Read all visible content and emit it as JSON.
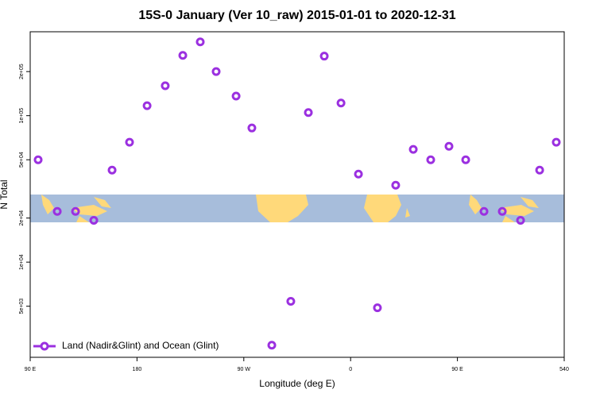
{
  "chart_data": {
    "type": "scatter",
    "title": "15S-0 January (Ver 10_raw)   2015-01-01 to 2020-12-31",
    "x_label": "Longitude (deg E)",
    "y_label": "N Total",
    "log_y": true,
    "legend_position": "bottom-left",
    "xlim": [
      90,
      540
    ],
    "ylim": [
      2240,
      374000
    ],
    "xticks": [
      {
        "value": 90,
        "label": "90 E"
      },
      180,
      {
        "value": 270,
        "label": "90 W"
      },
      {
        "value": 360,
        "label": "0"
      },
      {
        "value": 450,
        "label": "90 E"
      },
      540
    ],
    "yticks": [
      {
        "value": 5000,
        "label": "5e+03"
      },
      {
        "value": 10000,
        "label": "1e+04"
      },
      {
        "value": 20000,
        "label": "2e+04"
      },
      {
        "value": 50000,
        "label": "5e+04"
      },
      {
        "value": 100000,
        "label": "1e+05"
      },
      {
        "value": 200000,
        "label": "2e+05"
      }
    ],
    "series": [
      {
        "name": "Land (Nadir&Glint) and Ocean (Glint)",
        "color": "#9b30e0",
        "x": [
          96.7,
          112.8,
          128.2,
          143.6,
          159,
          173.7,
          188.5,
          203.8,
          218.6,
          233.3,
          246.7,
          263.5,
          276.8,
          293.6,
          309.6,
          324.4,
          337.8,
          351.9,
          366.6,
          382.6,
          398,
          412.8,
          427.5,
          442.9,
          457,
          472.4,
          487.8,
          503.2,
          519.3,
          533.3
        ],
        "values": [
          50000,
          22200,
          22200,
          19300,
          42500,
          65900,
          117000,
          160000,
          258000,
          319000,
          200000,
          136000,
          82400,
          2710,
          5400,
          105000,
          255000,
          122000,
          39900,
          4880,
          33500,
          58900,
          50000,
          61800,
          50000,
          22200,
          22200,
          19300,
          42500,
          65900
        ]
      }
    ]
  }
}
